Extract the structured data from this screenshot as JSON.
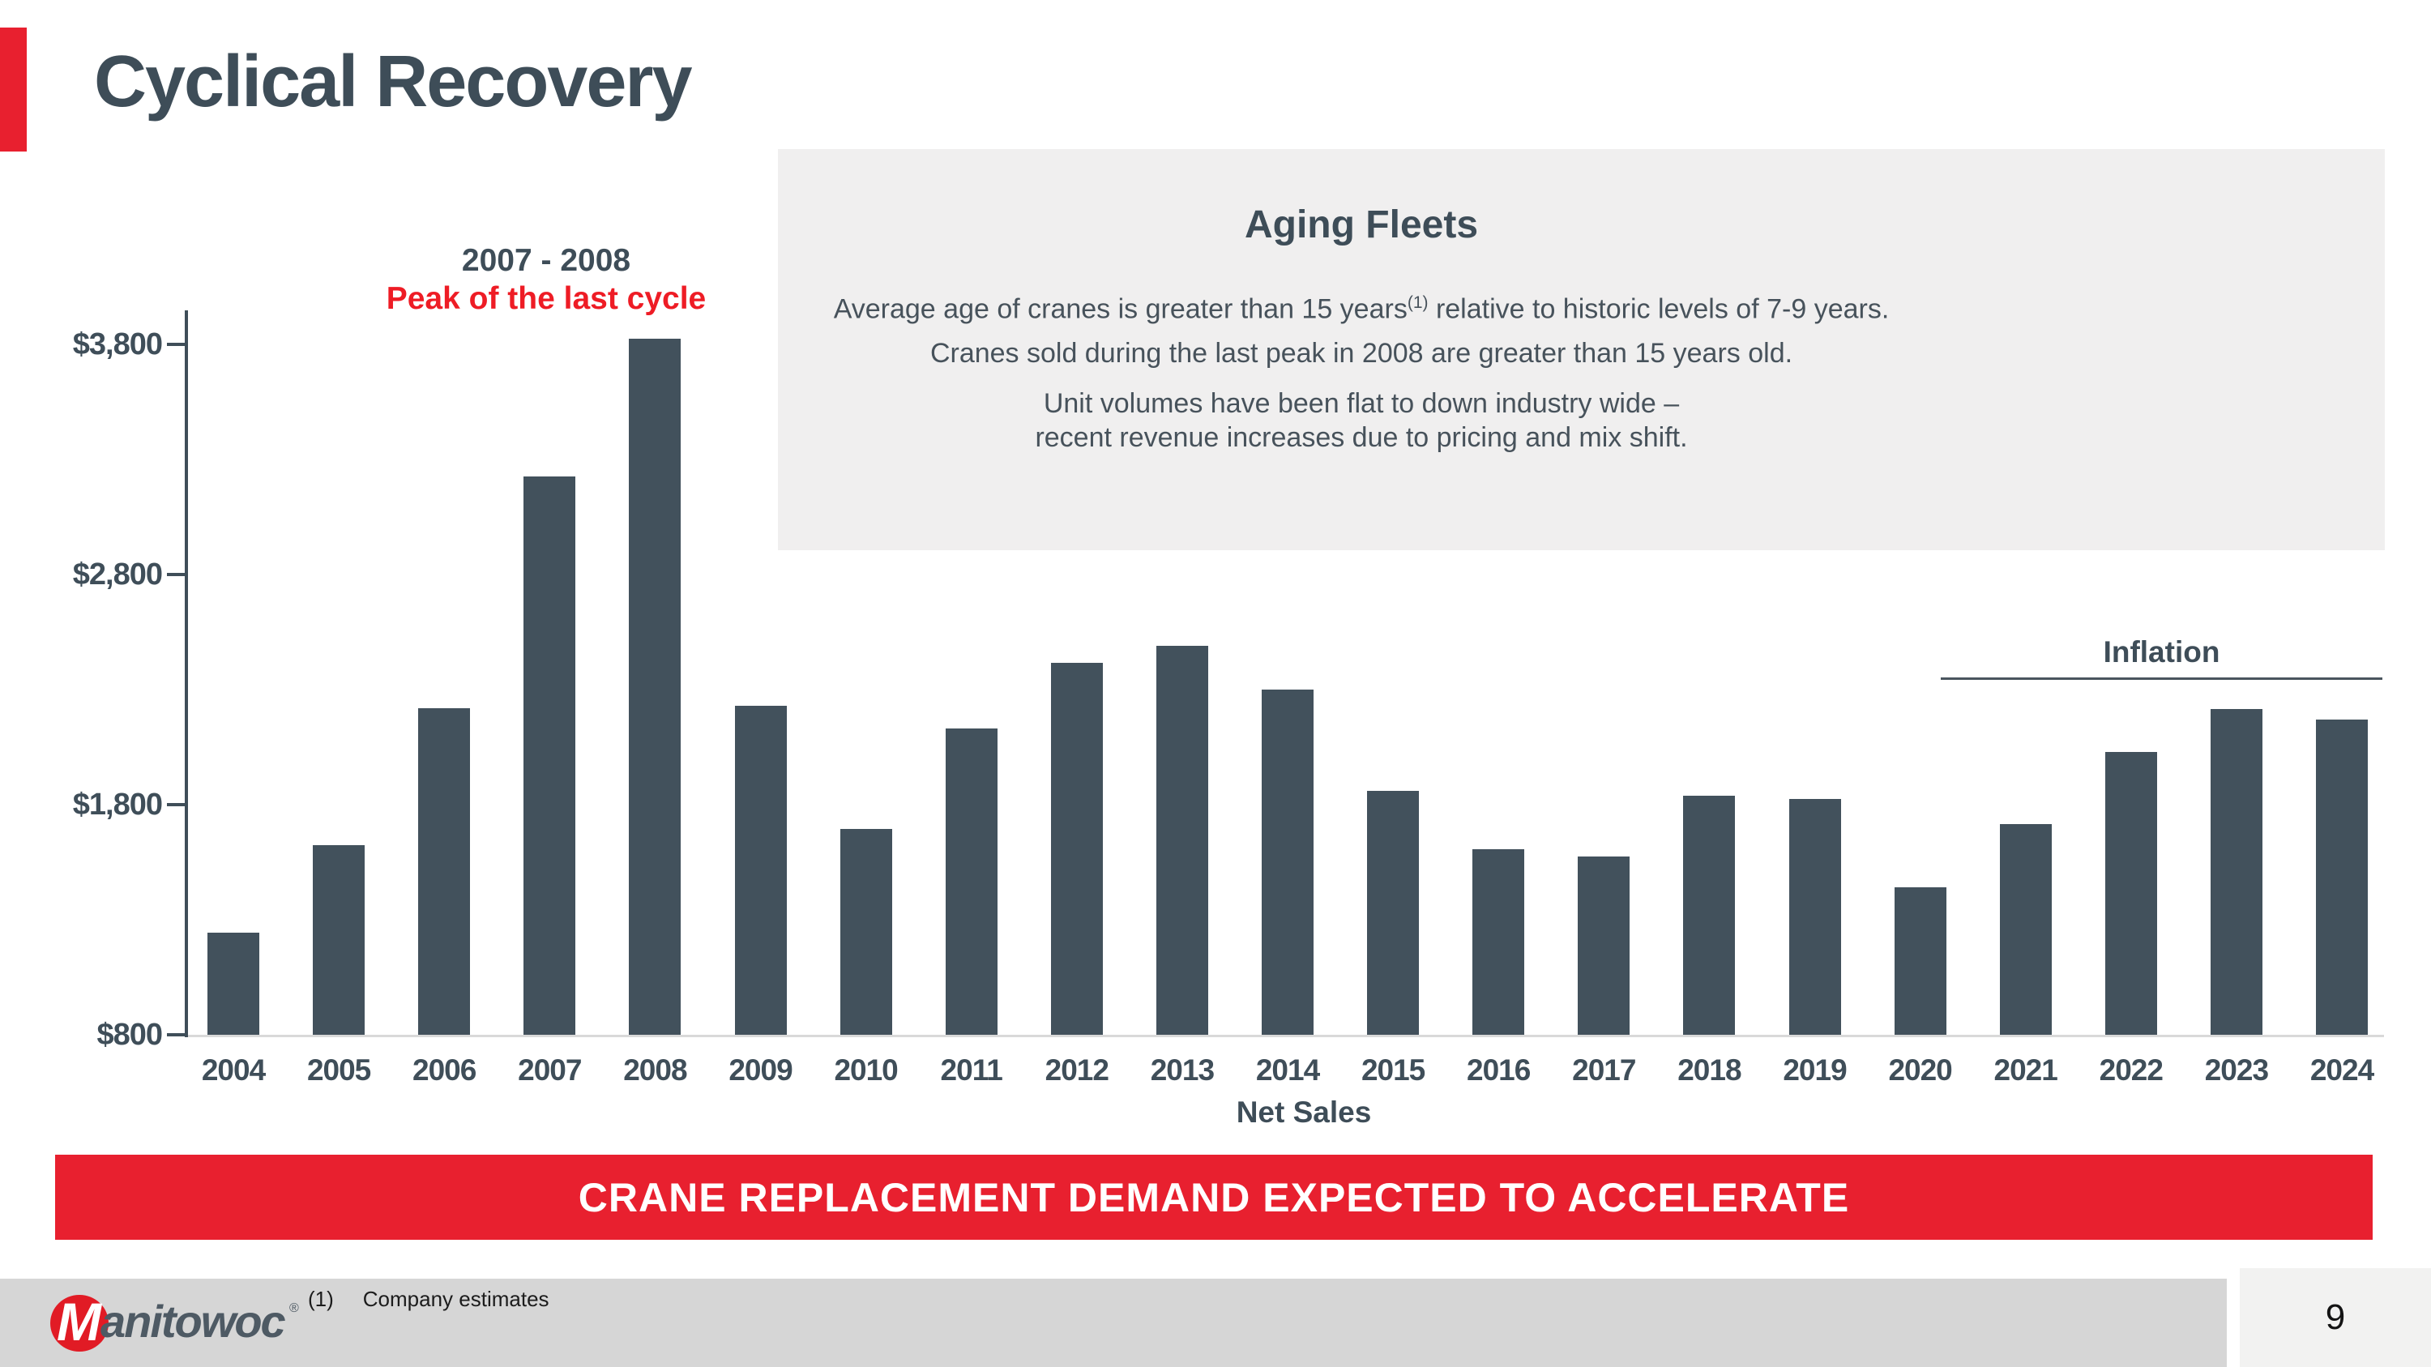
{
  "slide": {
    "title": "Cyclical Recovery",
    "banner": "CRANE REPLACEMENT DEMAND EXPECTED TO ACCELERATE",
    "footnote_marker": "(1)",
    "footnote_text": "Company estimates",
    "page_number": "9"
  },
  "aging_fleets": {
    "title": "Aging Fleets",
    "para1_a": "Average age of cranes is greater than 15 years",
    "para1_sup": "(1)",
    "para1_b": " relative to historic levels of 7-9 years.",
    "para2": "Cranes sold during the last peak in 2008 are greater than 15 years old.",
    "para3_line1": "Unit volumes have been flat to down industry wide –",
    "para3_line2": "recent revenue increases due to pricing and mix shift."
  },
  "logo": {
    "mark": "M",
    "wordmark": "anitowoc",
    "registered": "®"
  },
  "colors": {
    "accent_red": "#e8202f",
    "annotation_red": "#ee1c25",
    "bar": "#42515c",
    "text_dark": "#3f4e59",
    "panel_bg": "#f0efef",
    "footer_bg": "#d6d6d6",
    "page_box_bg": "#f2f2f1",
    "baseline_gray": "#d9d9d9",
    "banner_text": "#ffffff"
  },
  "chart_data": {
    "type": "bar",
    "title": "",
    "xlabel": "Net Sales",
    "ylabel": "",
    "categories": [
      "2004",
      "2005",
      "2006",
      "2007",
      "2008",
      "2009",
      "2010",
      "2011",
      "2012",
      "2013",
      "2014",
      "2015",
      "2016",
      "2017",
      "2018",
      "2019",
      "2020",
      "2021",
      "2022",
      "2023",
      "2024"
    ],
    "values": [
      1245,
      1625,
      2220,
      3225,
      3825,
      2230,
      1695,
      2130,
      2415,
      2490,
      2300,
      1860,
      1605,
      1575,
      1840,
      1825,
      1440,
      1715,
      2030,
      2215,
      2170
    ],
    "y_ticks": [
      {
        "label": "$800",
        "value": 800
      },
      {
        "label": "$1,800",
        "value": 1800
      },
      {
        "label": "$2,800",
        "value": 2800
      },
      {
        "label": "$3,800",
        "value": 3800
      }
    ],
    "ylim": [
      800,
      3900
    ],
    "grid": false,
    "bar_color": "#42515c",
    "annotations": {
      "peak_years": "2007 - 2008",
      "peak_caption": "Peak of the last cycle",
      "inflation": "Inflation",
      "inflation_span": [
        "2021",
        "2024"
      ]
    }
  }
}
